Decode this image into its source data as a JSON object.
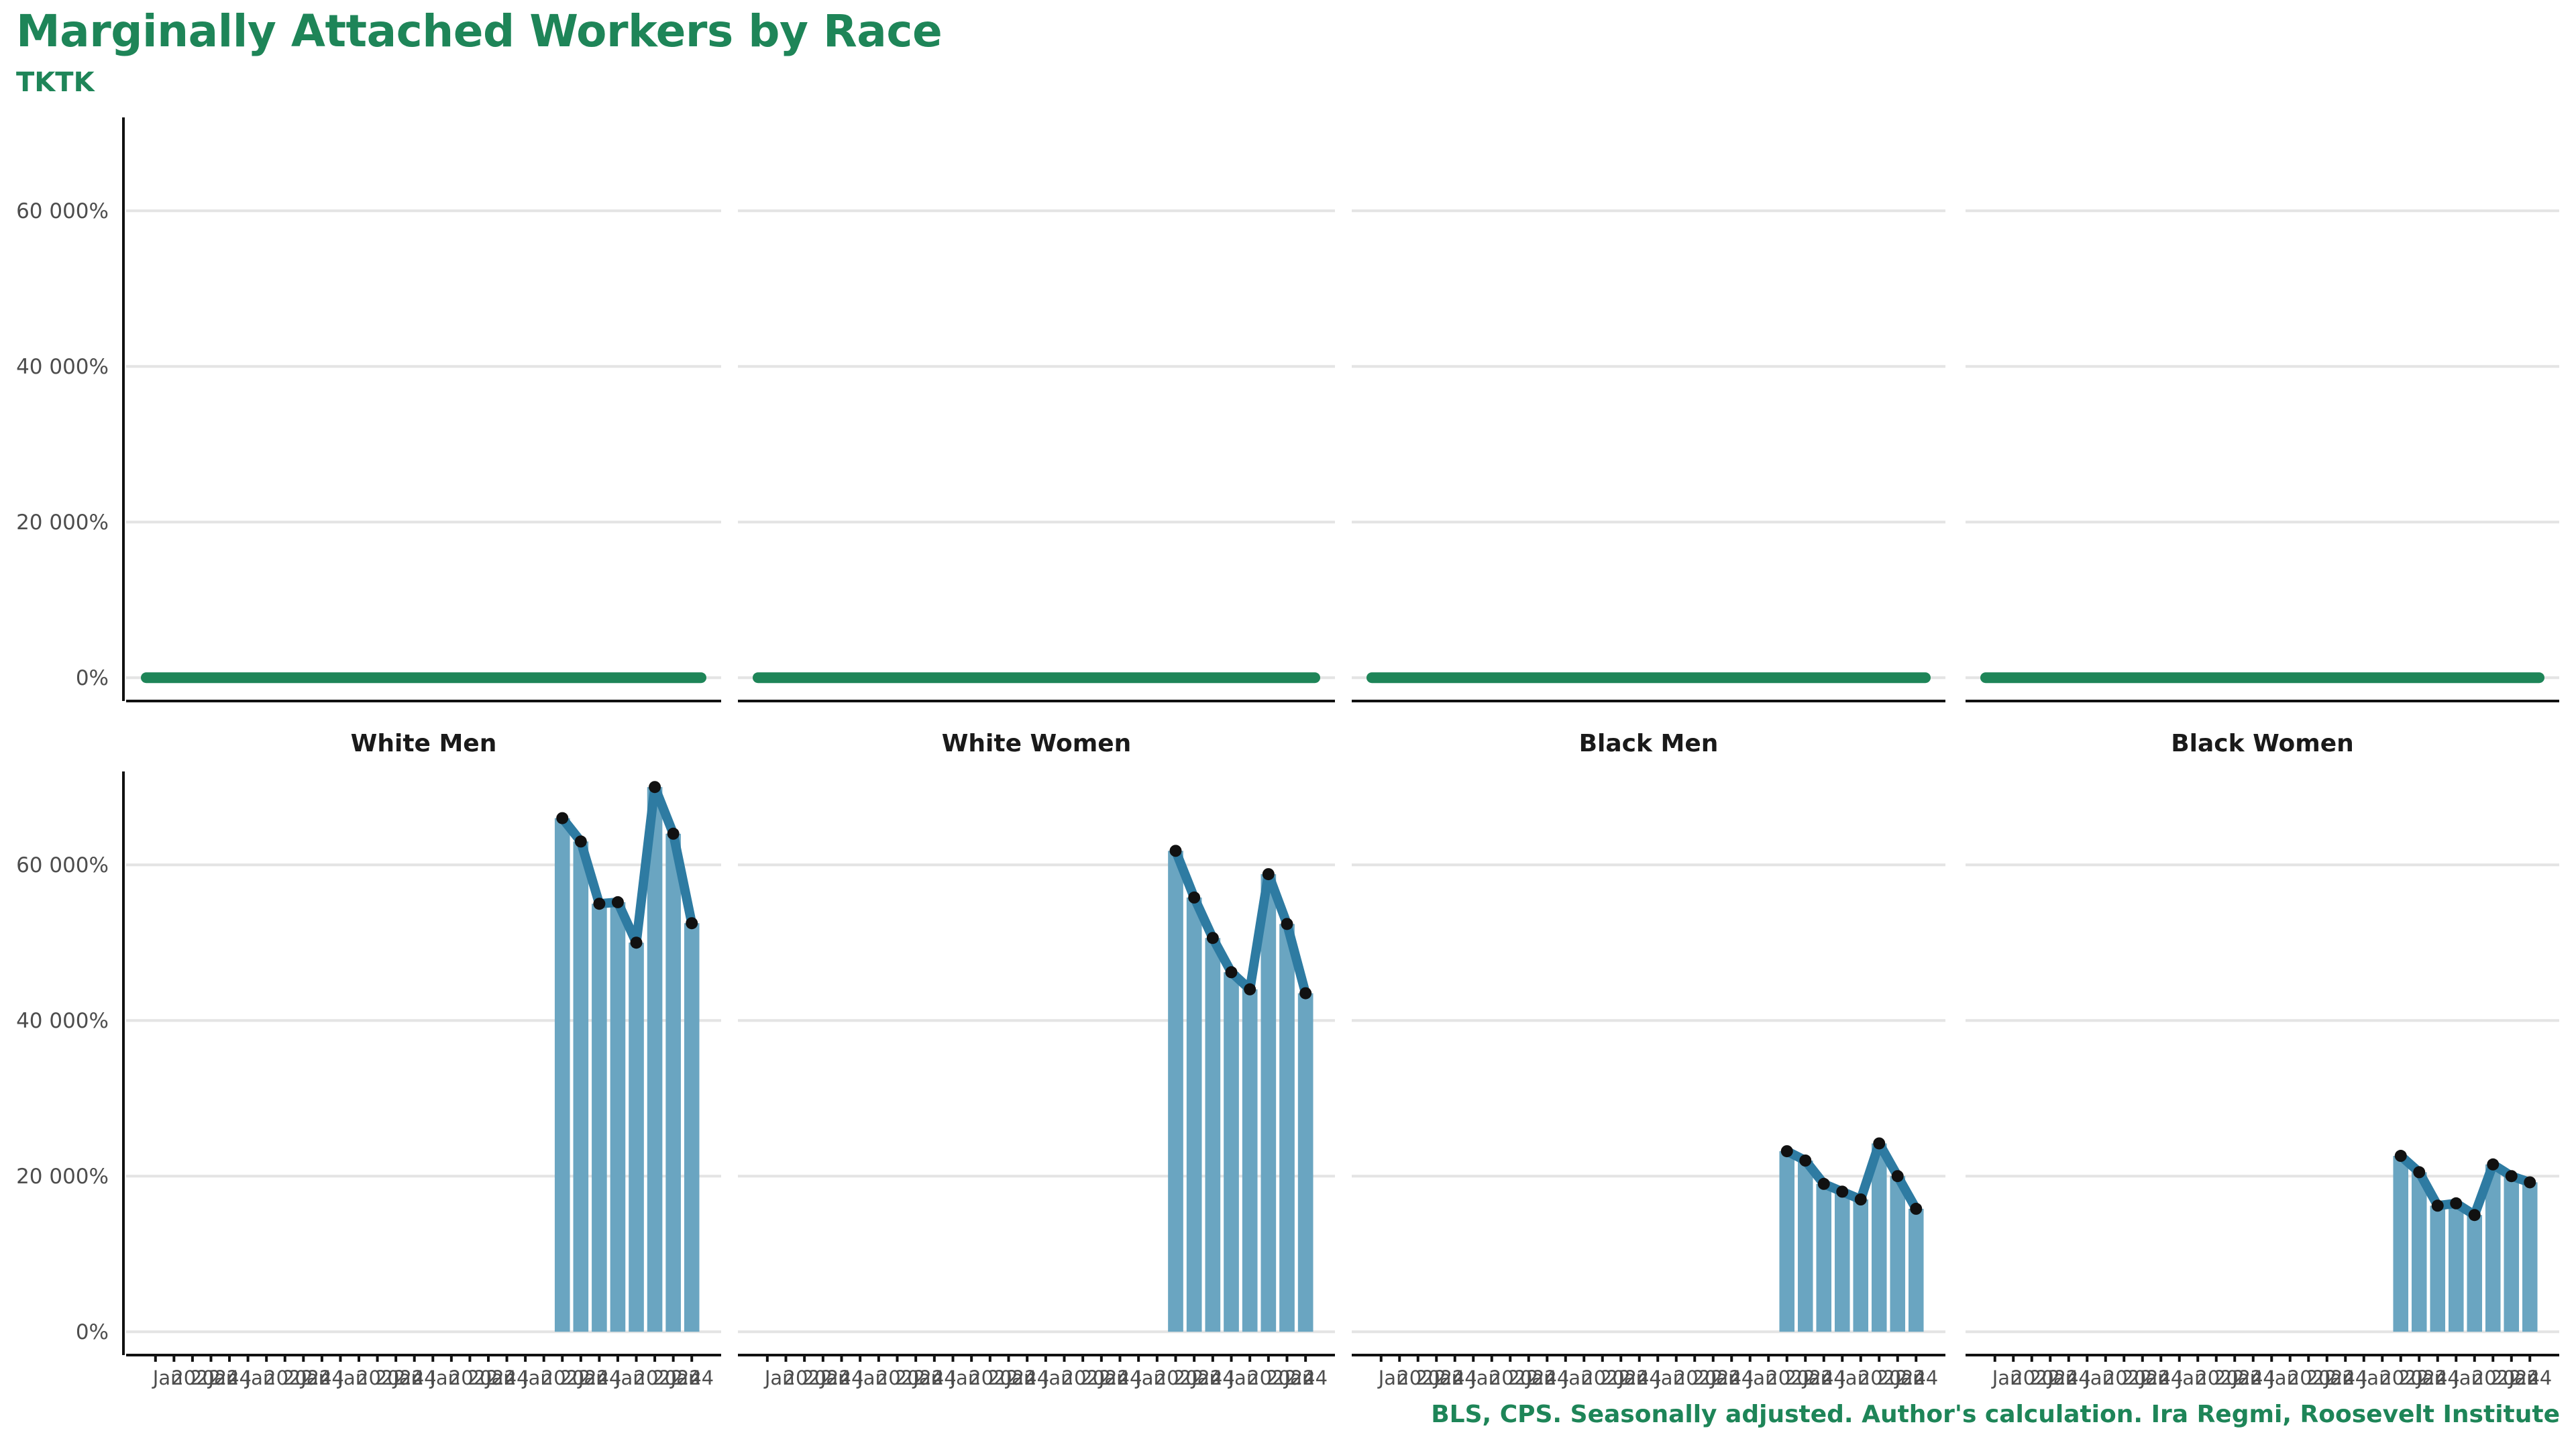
{
  "title": "Marginally Attached Workers by Race",
  "subtitle": "TKTK",
  "caption": "BLS, CPS. Seasonally adjusted. Author's calculation. Ira Regmi, Roosevelt Institute",
  "chart_data": {
    "type": "bar",
    "layout": "faceted 2 rows x 4 columns",
    "y_tick_labels": [
      "0%",
      "20 000%",
      "40 000%",
      "60 000%"
    ],
    "y_ticks": [
      0,
      20000,
      40000,
      60000
    ],
    "ylim": [
      -3000,
      72000
    ],
    "grid": "horizontal",
    "x_tick_label_fragments": [
      "Jan",
      "2022",
      "2024",
      "Jan",
      "24"
    ],
    "colors": {
      "title": "#1e8558",
      "bars": "#6aa5c1",
      "line": "#2e7ba2",
      "points": "#111111",
      "top_row_series": "#1e8558"
    },
    "top_row": {
      "panels": 4,
      "description_values": "series near 0 across the full period",
      "values": [
        0,
        0,
        0,
        0
      ]
    },
    "bottom_row": [
      {
        "strip_label": "White Men",
        "values": [
          66000,
          63000,
          55000,
          55200,
          50000,
          70000,
          64000,
          52500
        ]
      },
      {
        "strip_label": "White Women",
        "values": [
          61800,
          55800,
          50600,
          46200,
          44000,
          58800,
          52400,
          43500
        ]
      },
      {
        "strip_label": "Black Men",
        "values": [
          23200,
          22000,
          19000,
          18000,
          17000,
          24200,
          20000,
          15800
        ]
      },
      {
        "strip_label": "Black Women",
        "values": [
          22600,
          20500,
          16200,
          16500,
          15000,
          21500,
          20000,
          19200
        ]
      }
    ]
  }
}
